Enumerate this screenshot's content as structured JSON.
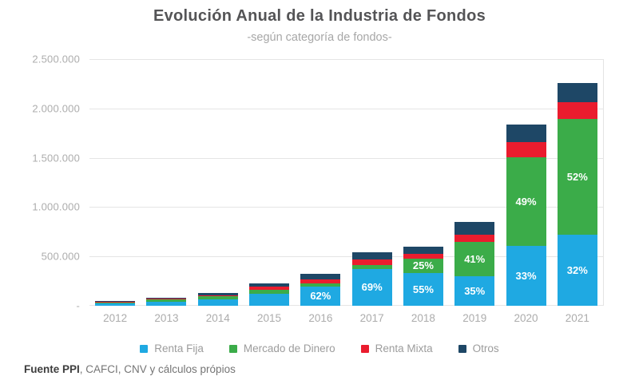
{
  "title": "Evolución Anual de la Industria de Fondos",
  "subtitle": "-según categoría de fondos-",
  "source": {
    "bold": "Fuente PPI",
    "rest": ", CAFCI, CNV y cálculos própios"
  },
  "chart_data": {
    "type": "bar",
    "stacked": true,
    "title": "Evolución Anual de la Industria de Fondos",
    "subtitle": "-según categoría de fondos-",
    "categories": [
      "2012",
      "2013",
      "2014",
      "2015",
      "2016",
      "2017",
      "2018",
      "2019",
      "2020",
      "2021"
    ],
    "series": [
      {
        "name": "Renta Fija",
        "color": "#1FA9E2",
        "values": [
          24000,
          42000,
          66000,
          118000,
          198000,
          373000,
          330000,
          298000,
          607000,
          722000
        ],
        "labels": [
          "",
          "",
          "",
          "",
          "62%",
          "69%",
          "55%",
          "35%",
          "33%",
          "32%"
        ]
      },
      {
        "name": "Mercado de Dinero",
        "color": "#3BAC49",
        "values": [
          11000,
          19000,
          29000,
          48000,
          30000,
          43000,
          150000,
          348000,
          902000,
          1173000
        ],
        "labels": [
          "",
          "",
          "",
          "",
          "",
          "",
          "25%",
          "41%",
          "49%",
          "52%"
        ]
      },
      {
        "name": "Renta Mixta",
        "color": "#EA1C2E",
        "values": [
          6000,
          9000,
          13000,
          32000,
          40000,
          54000,
          50000,
          77000,
          150000,
          165000
        ],
        "labels": [
          "",
          "",
          "",
          "",
          "",
          "",
          "",
          "",
          "",
          ""
        ]
      },
      {
        "name": "Otros",
        "color": "#1E4766",
        "values": [
          9000,
          15000,
          22000,
          30000,
          52000,
          70000,
          70000,
          127000,
          181000,
          195000
        ],
        "labels": [
          "",
          "",
          "",
          "",
          "",
          "",
          "",
          "",
          "",
          ""
        ]
      }
    ],
    "totals": [
      50000,
      85000,
      130000,
      228000,
      320000,
      540000,
      600000,
      850000,
      1840000,
      2255000
    ],
    "ylim": [
      0,
      2500000
    ],
    "ytick_labels_top_to_bottom": [
      "2.500.000",
      "2.000.000",
      "1.500.000",
      "1.000.000",
      "500.000",
      "-"
    ],
    "grid": true,
    "legend_position": "bottom"
  }
}
